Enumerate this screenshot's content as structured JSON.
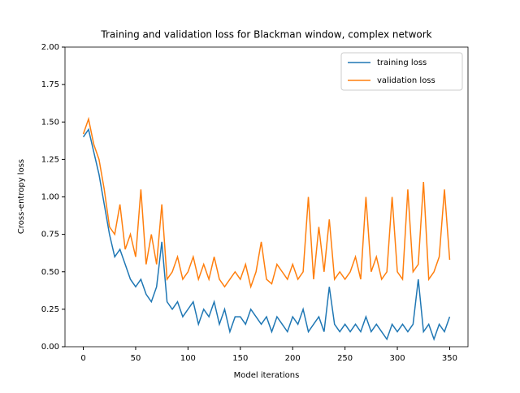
{
  "chart_data": {
    "type": "line",
    "title": "Training and validation loss for Blackman window, complex network",
    "x_label": "Model iterations",
    "y_label": "Cross-entropy loss",
    "x": [
      0,
      5,
      10,
      15,
      20,
      25,
      30,
      35,
      40,
      45,
      50,
      55,
      60,
      65,
      70,
      75,
      80,
      85,
      90,
      95,
      100,
      105,
      110,
      115,
      120,
      125,
      130,
      135,
      140,
      145,
      150,
      155,
      160,
      165,
      170,
      175,
      180,
      185,
      190,
      195,
      200,
      205,
      210,
      215,
      220,
      225,
      230,
      235,
      240,
      245,
      250,
      255,
      260,
      265,
      270,
      275,
      280,
      285,
      290,
      295,
      300,
      305,
      310,
      315,
      320,
      325,
      330,
      335,
      340,
      345,
      350
    ],
    "series": [
      {
        "name": "training loss",
        "color": "#1f77b4",
        "values": [
          1.4,
          1.45,
          1.3,
          1.15,
          0.95,
          0.75,
          0.6,
          0.65,
          0.55,
          0.45,
          0.4,
          0.45,
          0.35,
          0.3,
          0.4,
          0.7,
          0.3,
          0.25,
          0.3,
          0.2,
          0.25,
          0.3,
          0.15,
          0.25,
          0.2,
          0.3,
          0.15,
          0.25,
          0.1,
          0.2,
          0.2,
          0.15,
          0.25,
          0.2,
          0.15,
          0.2,
          0.1,
          0.2,
          0.15,
          0.1,
          0.2,
          0.15,
          0.25,
          0.1,
          0.15,
          0.2,
          0.1,
          0.4,
          0.15,
          0.1,
          0.15,
          0.1,
          0.15,
          0.1,
          0.2,
          0.1,
          0.15,
          0.1,
          0.05,
          0.15,
          0.1,
          0.15,
          0.1,
          0.15,
          0.45,
          0.1,
          0.15,
          0.05,
          0.15,
          0.1,
          0.2
        ]
      },
      {
        "name": "validation loss",
        "color": "#ff7f0e",
        "values": [
          1.42,
          1.52,
          1.35,
          1.25,
          1.05,
          0.8,
          0.75,
          0.95,
          0.65,
          0.75,
          0.6,
          1.05,
          0.55,
          0.75,
          0.55,
          0.95,
          0.45,
          0.5,
          0.6,
          0.45,
          0.5,
          0.6,
          0.45,
          0.55,
          0.45,
          0.6,
          0.45,
          0.4,
          0.45,
          0.5,
          0.45,
          0.55,
          0.4,
          0.5,
          0.7,
          0.45,
          0.42,
          0.55,
          0.5,
          0.45,
          0.55,
          0.45,
          0.5,
          1.0,
          0.45,
          0.8,
          0.5,
          0.85,
          0.45,
          0.5,
          0.45,
          0.5,
          0.6,
          0.45,
          1.0,
          0.5,
          0.6,
          0.45,
          0.5,
          1.0,
          0.5,
          0.45,
          1.05,
          0.5,
          0.55,
          1.1,
          0.45,
          0.5,
          0.6,
          1.05,
          0.58
        ]
      }
    ],
    "xlim": [
      -17.5,
      367.5
    ],
    "ylim": [
      0,
      2
    ],
    "xticks": [
      0,
      50,
      100,
      150,
      200,
      250,
      300,
      350
    ],
    "yticks": [
      {
        "value": 0,
        "label": "0.00"
      },
      {
        "value": 0.25,
        "label": "0.25"
      },
      {
        "value": 0.5,
        "label": "0.50"
      },
      {
        "value": 0.75,
        "label": "0.75"
      },
      {
        "value": 1,
        "label": "1.00"
      },
      {
        "value": 1.25,
        "label": "1.25"
      },
      {
        "value": 1.5,
        "label": "1.50"
      },
      {
        "value": 1.75,
        "label": "1.75"
      },
      {
        "value": 2,
        "label": "2.00"
      }
    ],
    "legend": "upper right"
  }
}
